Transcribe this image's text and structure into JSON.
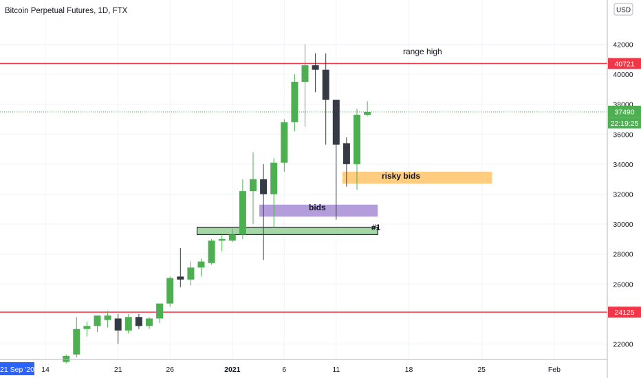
{
  "header": {
    "title": "Bitcoin Perpetual Futures, 1D, FTX",
    "currency_button": "USD"
  },
  "chart_data": {
    "type": "candlestick",
    "title": "Bitcoin Perpetual Futures, 1D, FTX",
    "y_ticks": [
      22000,
      24000,
      26000,
      28000,
      30000,
      32000,
      34000,
      36000,
      38000,
      40000,
      42000
    ],
    "x_ticks": [
      {
        "label": "14",
        "day": 0
      },
      {
        "label": "21",
        "day": 7
      },
      {
        "label": "26",
        "day": 12
      },
      {
        "label": "2021",
        "day": 18
      },
      {
        "label": "6",
        "day": 23
      },
      {
        "label": "11",
        "day": 28
      },
      {
        "label": "18",
        "day": 35
      },
      {
        "label": "25",
        "day": 42
      },
      {
        "label": "Feb",
        "day": 49
      }
    ],
    "x_start_label": "21 Sep '20",
    "candles": [
      {
        "day": 2,
        "o": 20800,
        "h": 21300,
        "l": 20700,
        "c": 21200
      },
      {
        "day": 3,
        "o": 21300,
        "h": 23800,
        "l": 21100,
        "c": 23000
      },
      {
        "day": 4,
        "o": 23000,
        "h": 23500,
        "l": 22500,
        "c": 23200
      },
      {
        "day": 5,
        "o": 23200,
        "h": 23700,
        "l": 22800,
        "c": 23900
      },
      {
        "day": 6,
        "o": 23600,
        "h": 24200,
        "l": 23100,
        "c": 23900
      },
      {
        "day": 7,
        "o": 23700,
        "h": 24000,
        "l": 22000,
        "c": 22900
      },
      {
        "day": 8,
        "o": 22900,
        "h": 24000,
        "l": 22700,
        "c": 23800
      },
      {
        "day": 9,
        "o": 23800,
        "h": 24000,
        "l": 23000,
        "c": 23200
      },
      {
        "day": 10,
        "o": 23200,
        "h": 23800,
        "l": 23000,
        "c": 23700
      },
      {
        "day": 11,
        "o": 23700,
        "h": 24600,
        "l": 23400,
        "c": 24700
      },
      {
        "day": 12,
        "o": 24700,
        "h": 26500,
        "l": 24500,
        "c": 26400
      },
      {
        "day": 13,
        "o": 26500,
        "h": 28400,
        "l": 25800,
        "c": 26300
      },
      {
        "day": 14,
        "o": 26300,
        "h": 27500,
        "l": 25900,
        "c": 27100
      },
      {
        "day": 15,
        "o": 27100,
        "h": 27700,
        "l": 26500,
        "c": 27500
      },
      {
        "day": 16,
        "o": 27400,
        "h": 29000,
        "l": 27300,
        "c": 28900
      },
      {
        "day": 17,
        "o": 28900,
        "h": 29300,
        "l": 28200,
        "c": 29000
      },
      {
        "day": 18,
        "o": 28900,
        "h": 29700,
        "l": 28800,
        "c": 29300
      },
      {
        "day": 19,
        "o": 29300,
        "h": 33000,
        "l": 29000,
        "c": 32200
      },
      {
        "day": 20,
        "o": 32200,
        "h": 34800,
        "l": 30000,
        "c": 33000
      },
      {
        "day": 21,
        "o": 33000,
        "h": 34000,
        "l": 27600,
        "c": 32000
      },
      {
        "day": 22,
        "o": 32000,
        "h": 34400,
        "l": 29800,
        "c": 34100
      },
      {
        "day": 23,
        "o": 34100,
        "h": 37000,
        "l": 33500,
        "c": 36800
      },
      {
        "day": 24,
        "o": 36800,
        "h": 40000,
        "l": 36200,
        "c": 39500
      },
      {
        "day": 25,
        "o": 39500,
        "h": 42000,
        "l": 36500,
        "c": 40600
      },
      {
        "day": 26,
        "o": 40600,
        "h": 41400,
        "l": 38800,
        "c": 40300
      },
      {
        "day": 27,
        "o": 40300,
        "h": 41400,
        "l": 35300,
        "c": 38300
      },
      {
        "day": 28,
        "o": 38300,
        "h": 38300,
        "l": 30300,
        "c": 35300
      },
      {
        "day": 29,
        "o": 35400,
        "h": 35800,
        "l": 32500,
        "c": 34000
      },
      {
        "day": 30,
        "o": 34000,
        "h": 37700,
        "l": 32300,
        "c": 37300
      },
      {
        "day": 31,
        "o": 37300,
        "h": 38200,
        "l": 37200,
        "c": 37490
      }
    ],
    "horizontal_lines": [
      {
        "value": 40721,
        "label": "40721",
        "color": "#f23645"
      },
      {
        "value": 24125,
        "label": "24125",
        "color": "#f23645"
      }
    ],
    "last_price": {
      "value": 37490,
      "label": "37490",
      "countdown": "22:19:25",
      "color": "#4caf50"
    },
    "annotations": [
      {
        "text": "range high",
        "type": "text"
      },
      {
        "text": "risky bids",
        "type": "zone",
        "color": "#ffcc80",
        "top": 33500,
        "bottom": 32700,
        "day_start": 29,
        "day_end": 43
      },
      {
        "text": "bids",
        "type": "zone",
        "color": "#b39ddb",
        "top": 31300,
        "bottom": 30500,
        "day_start": 21,
        "day_end": 32
      },
      {
        "text": "#1",
        "type": "zone",
        "color": "#a5d6a7",
        "top": 29800,
        "bottom": 29300,
        "day_start": 15,
        "day_end": 32
      }
    ],
    "colors": {
      "up": "#4caf50",
      "down": "#363a45",
      "grid": "#f0f3fa"
    }
  }
}
